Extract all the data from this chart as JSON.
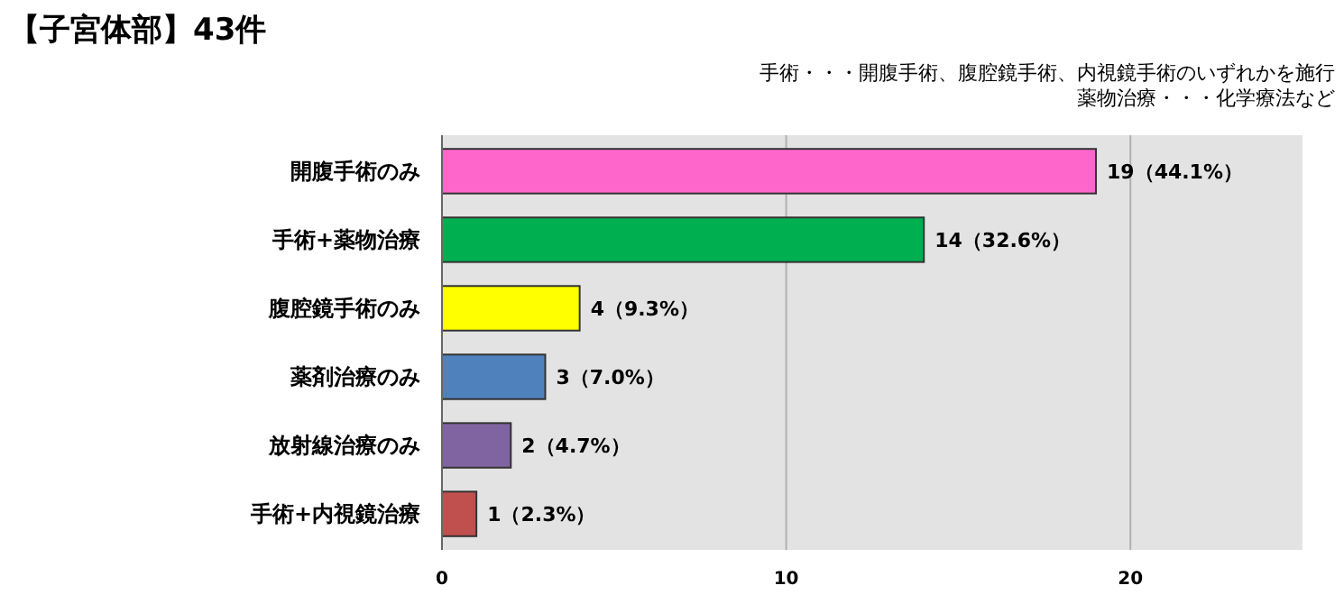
{
  "chart_data": {
    "type": "bar",
    "orientation": "horizontal",
    "title": "【子宮体部】43件",
    "annotations": [
      "手術・・・開腹手術、腹腔鏡手術、内視鏡手術のいずれかを施行",
      "薬物治療・・・化学療法など"
    ],
    "categories": [
      "開腹手術のみ",
      "手術+薬物治療",
      "腹腔鏡手術のみ",
      "薬剤治療のみ",
      "放射線治療のみ",
      "手術+内視鏡治療"
    ],
    "values": [
      19,
      14,
      4,
      3,
      2,
      1
    ],
    "colors": [
      "#ff66cc",
      "#00b050",
      "#ffff00",
      "#4f81bd",
      "#8064a2",
      "#c0504d"
    ],
    "value_labels": [
      "19（44.1%）",
      "14（32.6%）",
      "4（9.3%）",
      "3（7.0%）",
      "2（4.7%）",
      "1（2.3%）"
    ],
    "xlim": [
      0,
      25
    ],
    "xticks": [
      0,
      10,
      20
    ],
    "grid": "x"
  }
}
